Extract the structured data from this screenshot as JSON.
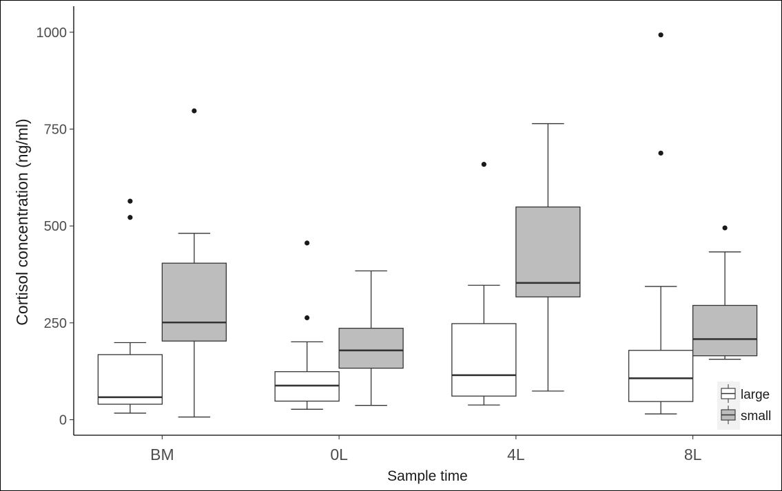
{
  "chart_data": {
    "type": "boxplot",
    "title": "",
    "xlabel": "Sample time",
    "ylabel": "Cortisol concentration (ng/ml)",
    "categories": [
      "BM",
      "0L",
      "4L",
      "8L"
    ],
    "ylim": [
      -40,
      1060
    ],
    "yticks": [
      0,
      250,
      500,
      750,
      1000
    ],
    "grid": false,
    "legend": {
      "position": "bottom-right",
      "entries": [
        {
          "name": "large",
          "fill": "#ffffff"
        },
        {
          "name": "small",
          "fill": "#bdbdbd"
        }
      ]
    },
    "series": [
      {
        "name": "large",
        "fill": "#ffffff",
        "boxes": [
          {
            "category": "BM",
            "whisker_low": 17,
            "q1": 40,
            "median": 58,
            "q3": 168,
            "whisker_high": 199,
            "outliers": [
              522,
              564
            ]
          },
          {
            "category": "0L",
            "whisker_low": 27,
            "q1": 48,
            "median": 88,
            "q3": 124,
            "whisker_high": 201,
            "outliers": [
              263,
              456
            ]
          },
          {
            "category": "4L",
            "whisker_low": 38,
            "q1": 61,
            "median": 115,
            "q3": 248,
            "whisker_high": 347,
            "outliers": [
              659
            ]
          },
          {
            "category": "8L",
            "whisker_low": 15,
            "q1": 47,
            "median": 107,
            "q3": 179,
            "whisker_high": 344,
            "outliers": [
              688,
              993
            ]
          }
        ]
      },
      {
        "name": "small",
        "fill": "#bdbdbd",
        "boxes": [
          {
            "category": "BM",
            "whisker_low": 7,
            "q1": 203,
            "median": 251,
            "q3": 404,
            "whisker_high": 481,
            "outliers": [
              797
            ]
          },
          {
            "category": "0L",
            "whisker_low": 37,
            "q1": 133,
            "median": 179,
            "q3": 236,
            "whisker_high": 384,
            "outliers": []
          },
          {
            "category": "4L",
            "whisker_low": 74,
            "q1": 317,
            "median": 353,
            "q3": 549,
            "whisker_high": 764,
            "outliers": []
          },
          {
            "category": "8L",
            "whisker_low": 156,
            "q1": 165,
            "median": 208,
            "q3": 295,
            "whisker_high": 433,
            "outliers": [
              495
            ]
          }
        ]
      }
    ]
  }
}
